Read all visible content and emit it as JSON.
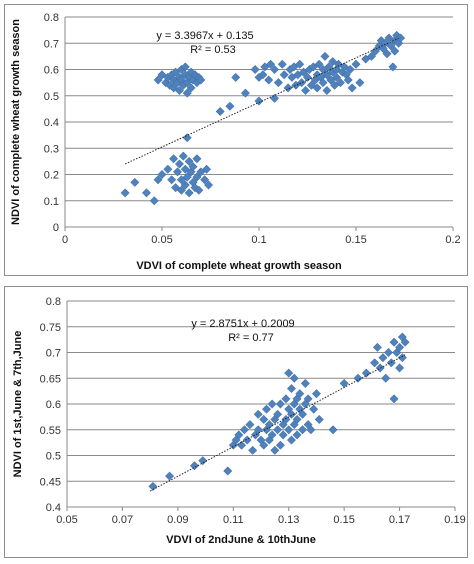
{
  "chart_data": [
    {
      "type": "scatter",
      "title": "",
      "xlabel": "VDVI of  complete wheat growth season",
      "ylabel": "NDVI of complete wheat growth season",
      "xlim": [
        0,
        0.2
      ],
      "ylim": [
        0,
        0.8
      ],
      "xticks": [
        "0",
        "0.05",
        "0.1",
        "0.15",
        "0.2"
      ],
      "yticks": [
        "0",
        "0.1",
        "0.2",
        "0.3",
        "0.4",
        "0.5",
        "0.6",
        "0.7",
        "0.8"
      ],
      "grid": "horizontal",
      "equation": "y = 3.3967x + 0.135",
      "r2": "R² = 0.53",
      "trendline": [
        [
          0.031,
          0.2403
        ],
        [
          0.172,
          0.7192
        ]
      ],
      "points": [
        [
          0.031,
          0.13
        ],
        [
          0.036,
          0.17
        ],
        [
          0.042,
          0.13
        ],
        [
          0.046,
          0.1
        ],
        [
          0.048,
          0.18
        ],
        [
          0.05,
          0.2
        ],
        [
          0.053,
          0.22
        ],
        [
          0.055,
          0.18
        ],
        [
          0.056,
          0.26
        ],
        [
          0.057,
          0.15
        ],
        [
          0.058,
          0.21
        ],
        [
          0.059,
          0.24
        ],
        [
          0.06,
          0.14
        ],
        [
          0.06,
          0.18
        ],
        [
          0.061,
          0.27
        ],
        [
          0.062,
          0.22
        ],
        [
          0.062,
          0.16
        ],
        [
          0.063,
          0.19
        ],
        [
          0.064,
          0.25
        ],
        [
          0.064,
          0.13
        ],
        [
          0.065,
          0.21
        ],
        [
          0.066,
          0.17
        ],
        [
          0.066,
          0.23
        ],
        [
          0.067,
          0.15
        ],
        [
          0.068,
          0.19
        ],
        [
          0.068,
          0.26
        ],
        [
          0.069,
          0.14
        ],
        [
          0.07,
          0.21
        ],
        [
          0.072,
          0.18
        ],
        [
          0.073,
          0.22
        ],
        [
          0.074,
          0.16
        ],
        [
          0.063,
          0.34
        ],
        [
          0.048,
          0.56
        ],
        [
          0.05,
          0.58
        ],
        [
          0.052,
          0.55
        ],
        [
          0.053,
          0.57
        ],
        [
          0.054,
          0.54
        ],
        [
          0.055,
          0.58
        ],
        [
          0.056,
          0.56
        ],
        [
          0.056,
          0.53
        ],
        [
          0.057,
          0.59
        ],
        [
          0.058,
          0.55
        ],
        [
          0.059,
          0.57
        ],
        [
          0.059,
          0.52
        ],
        [
          0.06,
          0.6
        ],
        [
          0.06,
          0.56
        ],
        [
          0.061,
          0.54
        ],
        [
          0.062,
          0.58
        ],
        [
          0.063,
          0.55
        ],
        [
          0.063,
          0.51
        ],
        [
          0.064,
          0.57
        ],
        [
          0.065,
          0.59
        ],
        [
          0.065,
          0.53
        ],
        [
          0.066,
          0.56
        ],
        [
          0.067,
          0.58
        ],
        [
          0.068,
          0.55
        ],
        [
          0.069,
          0.57
        ],
        [
          0.07,
          0.56
        ],
        [
          0.062,
          0.61
        ],
        [
          0.08,
          0.44
        ],
        [
          0.085,
          0.46
        ],
        [
          0.088,
          0.57
        ],
        [
          0.093,
          0.51
        ],
        [
          0.098,
          0.6
        ],
        [
          0.1,
          0.48
        ],
        [
          0.1,
          0.57
        ],
        [
          0.102,
          0.58
        ],
        [
          0.103,
          0.61
        ],
        [
          0.105,
          0.56
        ],
        [
          0.106,
          0.62
        ],
        [
          0.108,
          0.49
        ],
        [
          0.108,
          0.6
        ],
        [
          0.11,
          0.55
        ],
        [
          0.112,
          0.62
        ],
        [
          0.113,
          0.58
        ],
        [
          0.115,
          0.53
        ],
        [
          0.116,
          0.6
        ],
        [
          0.117,
          0.57
        ],
        [
          0.118,
          0.61
        ],
        [
          0.119,
          0.54
        ],
        [
          0.12,
          0.58
        ],
        [
          0.121,
          0.62
        ],
        [
          0.122,
          0.55
        ],
        [
          0.123,
          0.59
        ],
        [
          0.124,
          0.52
        ],
        [
          0.125,
          0.57
        ],
        [
          0.126,
          0.6
        ],
        [
          0.127,
          0.54
        ],
        [
          0.128,
          0.61
        ],
        [
          0.129,
          0.56
        ],
        [
          0.13,
          0.58
        ],
        [
          0.13,
          0.53
        ],
        [
          0.131,
          0.62
        ],
        [
          0.132,
          0.57
        ],
        [
          0.133,
          0.55
        ],
        [
          0.133,
          0.6
        ],
        [
          0.134,
          0.65
        ],
        [
          0.135,
          0.52
        ],
        [
          0.135,
          0.58
        ],
        [
          0.136,
          0.61
        ],
        [
          0.137,
          0.56
        ],
        [
          0.138,
          0.59
        ],
        [
          0.138,
          0.63
        ],
        [
          0.139,
          0.54
        ],
        [
          0.14,
          0.6
        ],
        [
          0.14,
          0.57
        ],
        [
          0.141,
          0.62
        ],
        [
          0.142,
          0.55
        ],
        [
          0.143,
          0.59
        ],
        [
          0.144,
          0.61
        ],
        [
          0.145,
          0.58
        ],
        [
          0.146,
          0.56
        ],
        [
          0.147,
          0.6
        ],
        [
          0.148,
          0.53
        ],
        [
          0.15,
          0.62
        ],
        [
          0.152,
          0.55
        ],
        [
          0.155,
          0.64
        ],
        [
          0.158,
          0.65
        ],
        [
          0.16,
          0.67
        ],
        [
          0.162,
          0.69
        ],
        [
          0.163,
          0.71
        ],
        [
          0.164,
          0.68
        ],
        [
          0.165,
          0.7
        ],
        [
          0.166,
          0.66
        ],
        [
          0.167,
          0.72
        ],
        [
          0.168,
          0.69
        ],
        [
          0.169,
          0.61
        ],
        [
          0.17,
          0.71
        ],
        [
          0.17,
          0.67
        ],
        [
          0.171,
          0.73
        ],
        [
          0.172,
          0.7
        ],
        [
          0.173,
          0.72
        ]
      ]
    },
    {
      "type": "scatter",
      "title": "",
      "xlabel": "VDVI of 2ndJune &  10thJune",
      "ylabel": "NDVI of 1st,June & 7th,June",
      "xlim": [
        0.05,
        0.19
      ],
      "ylim": [
        0.4,
        0.8
      ],
      "xticks": [
        "0.05",
        "0.07",
        "0.09",
        "0.11",
        "0.13",
        "0.15",
        "0.17",
        "0.19"
      ],
      "yticks": [
        "0.4",
        "0.45",
        "0.5",
        "0.55",
        "0.6",
        "0.65",
        "0.7",
        "0.75",
        "0.8"
      ],
      "grid": "horizontal",
      "equation": "y = 2.8751x + 0.2009",
      "r2": "R² = 0.77",
      "trendline": [
        [
          0.08,
          0.4309
        ],
        [
          0.172,
          0.6954
        ]
      ],
      "points": [
        [
          0.081,
          0.44
        ],
        [
          0.087,
          0.46
        ],
        [
          0.096,
          0.48
        ],
        [
          0.099,
          0.49
        ],
        [
          0.108,
          0.47
        ],
        [
          0.11,
          0.52
        ],
        [
          0.111,
          0.53
        ],
        [
          0.112,
          0.54
        ],
        [
          0.113,
          0.52
        ],
        [
          0.114,
          0.55
        ],
        [
          0.115,
          0.53
        ],
        [
          0.116,
          0.56
        ],
        [
          0.117,
          0.51
        ],
        [
          0.118,
          0.54
        ],
        [
          0.119,
          0.58
        ],
        [
          0.119,
          0.55
        ],
        [
          0.12,
          0.53
        ],
        [
          0.121,
          0.57
        ],
        [
          0.121,
          0.52
        ],
        [
          0.122,
          0.59
        ],
        [
          0.122,
          0.55
        ],
        [
          0.123,
          0.56
        ],
        [
          0.123,
          0.53
        ],
        [
          0.124,
          0.6
        ],
        [
          0.124,
          0.54
        ],
        [
          0.125,
          0.57
        ],
        [
          0.125,
          0.51
        ],
        [
          0.126,
          0.58
        ],
        [
          0.126,
          0.55
        ],
        [
          0.127,
          0.52
        ],
        [
          0.127,
          0.6
        ],
        [
          0.128,
          0.56
        ],
        [
          0.128,
          0.54
        ],
        [
          0.129,
          0.61
        ],
        [
          0.129,
          0.57
        ],
        [
          0.13,
          0.66
        ],
        [
          0.13,
          0.59
        ],
        [
          0.13,
          0.55
        ],
        [
          0.131,
          0.63
        ],
        [
          0.131,
          0.58
        ],
        [
          0.131,
          0.53
        ],
        [
          0.132,
          0.6
        ],
        [
          0.132,
          0.56
        ],
        [
          0.132,
          0.65
        ],
        [
          0.133,
          0.61
        ],
        [
          0.133,
          0.57
        ],
        [
          0.133,
          0.54
        ],
        [
          0.134,
          0.59
        ],
        [
          0.134,
          0.62
        ],
        [
          0.135,
          0.55
        ],
        [
          0.135,
          0.58
        ],
        [
          0.136,
          0.6
        ],
        [
          0.136,
          0.64
        ],
        [
          0.137,
          0.56
        ],
        [
          0.137,
          0.61
        ],
        [
          0.138,
          0.55
        ],
        [
          0.139,
          0.59
        ],
        [
          0.14,
          0.62
        ],
        [
          0.141,
          0.57
        ],
        [
          0.146,
          0.55
        ],
        [
          0.15,
          0.64
        ],
        [
          0.155,
          0.65
        ],
        [
          0.158,
          0.66
        ],
        [
          0.161,
          0.68
        ],
        [
          0.162,
          0.71
        ],
        [
          0.163,
          0.67
        ],
        [
          0.164,
          0.69
        ],
        [
          0.165,
          0.65
        ],
        [
          0.166,
          0.7
        ],
        [
          0.167,
          0.68
        ],
        [
          0.168,
          0.72
        ],
        [
          0.168,
          0.61
        ],
        [
          0.169,
          0.7
        ],
        [
          0.17,
          0.67
        ],
        [
          0.17,
          0.71
        ],
        [
          0.171,
          0.69
        ],
        [
          0.171,
          0.73
        ],
        [
          0.172,
          0.72
        ]
      ]
    }
  ]
}
